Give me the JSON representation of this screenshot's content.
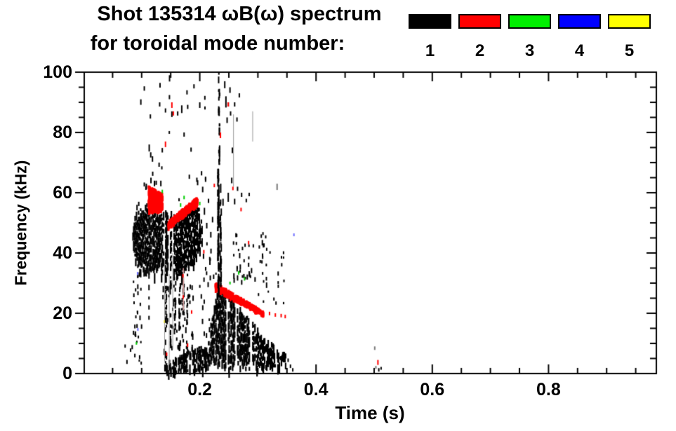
{
  "title": {
    "line1": "Shot 135314 ωB(ω) spectrum",
    "line2": "for toroidal mode number:"
  },
  "legend": {
    "modes": [
      {
        "label": "1",
        "color": "#000000"
      },
      {
        "label": "2",
        "color": "#ff0000"
      },
      {
        "label": "3",
        "color": "#00ee00"
      },
      {
        "label": "4",
        "color": "#0000ff"
      },
      {
        "label": "5",
        "color": "#ffff00"
      }
    ]
  },
  "chart_data": {
    "type": "scatter",
    "title": "Shot 135314 ωB(ω) spectrum for toroidal mode number: 1 2 3 4 5",
    "xlabel": "Time (s)",
    "ylabel": "Frequency (kHz)",
    "xlim": [
      0,
      0.985
    ],
    "ylim": [
      0,
      100
    ],
    "x_major_ticks": [
      0.2,
      0.4,
      0.6,
      0.8
    ],
    "x_minor_step": 0.05,
    "y_major_ticks": [
      0,
      20,
      40,
      60,
      80,
      100
    ],
    "y_minor_step": 5,
    "grid": false,
    "legend_position": "top-right-above-plot",
    "mode_colors": {
      "1": "#000000",
      "2": "#ff0000",
      "3": "#00cc00",
      "4": "#2222ff",
      "5": "#f0e000"
    },
    "clusters": [
      {
        "id": "main-blob",
        "type": "fill",
        "mode": 1,
        "step": 0.0012,
        "density": 0.93,
        "gap_prob": 0.04,
        "jitter": 2,
        "spike_prob": 0.06,
        "spike_max": 16,
        "gaps": [
          0.1395,
          0.1475,
          0.1535
        ],
        "top": [
          [
            0.085,
            47
          ],
          [
            0.088,
            52
          ],
          [
            0.095,
            53
          ],
          [
            0.105,
            54
          ],
          [
            0.112,
            56
          ],
          [
            0.12,
            54
          ],
          [
            0.128,
            52
          ],
          [
            0.135,
            53
          ],
          [
            0.142,
            55
          ],
          [
            0.15,
            53
          ],
          [
            0.158,
            52
          ],
          [
            0.165,
            53
          ],
          [
            0.172,
            52
          ],
          [
            0.178,
            51
          ],
          [
            0.185,
            54
          ],
          [
            0.192,
            56
          ],
          [
            0.198,
            53
          ],
          [
            0.204,
            48
          ]
        ],
        "bot": [
          [
            0.085,
            43
          ],
          [
            0.09,
            39
          ],
          [
            0.098,
            36
          ],
          [
            0.108,
            35
          ],
          [
            0.118,
            34
          ],
          [
            0.128,
            35
          ],
          [
            0.138,
            34
          ],
          [
            0.148,
            33
          ],
          [
            0.158,
            34
          ],
          [
            0.168,
            34
          ],
          [
            0.178,
            35
          ],
          [
            0.188,
            37
          ],
          [
            0.196,
            40
          ],
          [
            0.204,
            45
          ]
        ]
      },
      {
        "id": "low-blob",
        "type": "fill",
        "mode": 1,
        "step": 0.0012,
        "density": 0.88,
        "gap_prob": 0.09,
        "jitter": 1.5,
        "spike_prob": 0.05,
        "spike_max": 2,
        "gaps": [
          0.2465,
          0.262,
          0.289
        ],
        "top": [
          [
            0.218,
            14
          ],
          [
            0.224,
            21
          ],
          [
            0.23,
            26
          ],
          [
            0.238,
            27
          ],
          [
            0.248,
            25
          ],
          [
            0.258,
            23
          ],
          [
            0.268,
            21
          ],
          [
            0.278,
            19
          ],
          [
            0.29,
            16
          ],
          [
            0.3,
            14
          ],
          [
            0.312,
            11
          ],
          [
            0.324,
            9
          ],
          [
            0.336,
            7
          ],
          [
            0.348,
            6
          ]
        ],
        "bot": [
          [
            0.218,
            5
          ],
          [
            0.23,
            3
          ],
          [
            0.25,
            2.5
          ],
          [
            0.27,
            3
          ],
          [
            0.29,
            2.5
          ],
          [
            0.31,
            3
          ],
          [
            0.33,
            3.5
          ],
          [
            0.348,
            4
          ]
        ]
      },
      {
        "id": "bottom-arc",
        "type": "fill",
        "mode": 1,
        "step": 0.0013,
        "density": 0.8,
        "gap_prob": 0.15,
        "jitter": 0.8,
        "spike_prob": 0,
        "spike_max": 0,
        "top": [
          [
            0.14,
            3
          ],
          [
            0.15,
            4
          ],
          [
            0.16,
            5
          ],
          [
            0.175,
            6.5
          ],
          [
            0.19,
            8
          ],
          [
            0.2,
            8.5
          ],
          [
            0.212,
            8
          ],
          [
            0.218,
            6
          ]
        ],
        "bot": [
          [
            0.14,
            1
          ],
          [
            0.16,
            0.8
          ],
          [
            0.18,
            1
          ],
          [
            0.2,
            1.5
          ],
          [
            0.218,
            3
          ]
        ]
      },
      {
        "id": "red-burst",
        "type": "band",
        "mode": 2,
        "t": [
          0.112,
          0.136
        ],
        "f_top": [
          62,
          59.5
        ],
        "f_bot": [
          53.5,
          54.5
        ],
        "n": 300
      },
      {
        "id": "red-chirp-up",
        "type": "band",
        "mode": 2,
        "t": [
          0.146,
          0.196
        ],
        "f_top": [
          50.5,
          58.5
        ],
        "f_bot": [
          48.5,
          56
        ],
        "n": 280
      },
      {
        "id": "red-chirp-down",
        "type": "band",
        "mode": 2,
        "t": [
          0.227,
          0.31
        ],
        "f_top": [
          30,
          20.5
        ],
        "f_bot": [
          28,
          19.5
        ],
        "n": 320
      },
      {
        "id": "col-0232",
        "type": "vstreak",
        "mode": 1,
        "t": 0.232,
        "f": [
          28,
          68
        ],
        "n": 55,
        "len": [
          4,
          14
        ]
      },
      {
        "id": "col-0236",
        "type": "vstreak",
        "mode": 1,
        "t": 0.236,
        "f": [
          30,
          60
        ],
        "n": 30,
        "len": [
          4,
          12
        ]
      },
      {
        "id": "col-0234-high",
        "type": "vstreak",
        "mode": 1,
        "t": 0.2335,
        "f": [
          68,
          100
        ],
        "n": 25,
        "len": [
          3,
          10
        ]
      },
      {
        "id": "spike-0142",
        "type": "vstreak",
        "mode": 1,
        "t": 0.142,
        "f": [
          4,
          33
        ],
        "n": 22,
        "len": [
          3,
          9
        ]
      },
      {
        "id": "spike-0150",
        "type": "vstreak",
        "mode": 1,
        "t": 0.1495,
        "f": [
          8,
          33
        ],
        "n": 18,
        "len": [
          3,
          9
        ]
      },
      {
        "id": "spike-0158",
        "type": "vstreak",
        "mode": 1,
        "t": 0.1575,
        "f": [
          14,
          34
        ],
        "n": 16,
        "len": [
          3,
          8
        ]
      },
      {
        "id": "spike-0166",
        "type": "vstreak",
        "mode": 1,
        "t": 0.1655,
        "f": [
          5,
          33
        ],
        "n": 20,
        "len": [
          3,
          9
        ]
      },
      {
        "id": "spike-0172",
        "type": "vstreak",
        "mode": 1,
        "t": 0.172,
        "f": [
          16,
          34
        ],
        "n": 14,
        "len": [
          3,
          8
        ]
      },
      {
        "id": "spike-0178",
        "type": "vstreak",
        "mode": 1,
        "t": 0.178,
        "f": [
          8,
          34
        ],
        "n": 12,
        "len": [
          3,
          8
        ]
      },
      {
        "id": "under-sparse",
        "type": "cloud",
        "mode": 1,
        "t": [
          0.135,
          0.19
        ],
        "f": [
          8,
          32
        ],
        "n": 60,
        "len": [
          3,
          9
        ]
      },
      {
        "id": "left-sparse",
        "type": "cloud",
        "mode": 1,
        "t": [
          0.085,
          0.1
        ],
        "f": [
          12,
          35
        ],
        "n": 22,
        "len": [
          3,
          7
        ]
      },
      {
        "id": "left-low",
        "type": "cloud",
        "mode": 1,
        "t": [
          0.07,
          0.1
        ],
        "f": [
          3,
          12
        ],
        "n": 10,
        "len": [
          3,
          6
        ]
      },
      {
        "id": "gap-sparse",
        "type": "cloud",
        "mode": 1,
        "t": [
          0.2,
          0.23
        ],
        "f": [
          5,
          45
        ],
        "n": 35,
        "len": [
          3,
          8
        ]
      },
      {
        "id": "high-sparse",
        "type": "cloud",
        "mode": 1,
        "t": [
          0.095,
          0.215
        ],
        "f": [
          58,
          100
        ],
        "n": 18,
        "len": [
          3,
          8
        ]
      },
      {
        "id": "right-sparse",
        "type": "cloud",
        "mode": 1,
        "t": [
          0.258,
          0.315
        ],
        "f": [
          30,
          47
        ],
        "n": 45,
        "len": [
          3,
          8
        ]
      },
      {
        "id": "tail-sparse",
        "type": "cloud",
        "mode": 1,
        "t": [
          0.3,
          0.345
        ],
        "f": [
          22,
          42
        ],
        "n": 18,
        "len": [
          3,
          6
        ]
      }
    ],
    "sparse_points": {
      "black_dashes": [
        [
          0.092,
          56,
          8
        ],
        [
          0.095,
          57,
          6
        ],
        [
          0.108,
          63,
          8
        ],
        [
          0.113,
          76,
          10
        ],
        [
          0.115,
          86,
          6
        ],
        [
          0.116,
          65,
          8
        ],
        [
          0.119,
          67,
          6
        ],
        [
          0.122,
          64,
          8
        ],
        [
          0.125,
          64,
          6
        ],
        [
          0.13,
          70,
          6
        ],
        [
          0.131,
          90,
          6
        ],
        [
          0.133,
          64,
          8
        ],
        [
          0.141,
          88,
          6
        ],
        [
          0.148,
          99,
          9
        ],
        [
          0.152,
          87,
          8
        ],
        [
          0.162,
          87,
          6
        ],
        [
          0.169,
          89,
          11
        ],
        [
          0.173,
          80,
          6
        ],
        [
          0.178,
          94,
          6
        ],
        [
          0.185,
          75,
          6
        ],
        [
          0.19,
          96,
          6
        ],
        [
          0.2,
          90,
          8
        ],
        [
          0.182,
          66,
          6
        ],
        [
          0.195,
          65,
          6
        ],
        [
          0.196,
          55,
          5
        ],
        [
          0.199,
          55,
          5
        ],
        [
          0.205,
          62,
          8
        ],
        [
          0.208,
          55,
          10
        ],
        [
          0.212,
          50,
          8
        ],
        [
          0.215,
          58,
          6
        ],
        [
          0.219,
          47,
          8
        ],
        [
          0.222,
          52,
          8
        ],
        [
          0.21,
          65,
          6
        ],
        [
          0.236,
          63,
          13
        ],
        [
          0.24,
          58,
          10
        ],
        [
          0.243,
          97,
          10
        ],
        [
          0.245,
          92,
          16
        ],
        [
          0.247,
          85,
          8
        ],
        [
          0.249,
          90,
          6
        ],
        [
          0.252,
          95,
          8
        ],
        [
          0.253,
          87,
          6
        ],
        [
          0.256,
          75,
          8
        ],
        [
          0.26,
          90,
          6
        ],
        [
          0.264,
          85,
          6
        ],
        [
          0.268,
          93,
          6
        ],
        [
          0.249,
          60,
          13
        ],
        [
          0.255,
          65,
          8
        ],
        [
          0.26,
          58,
          8
        ],
        [
          0.265,
          62,
          6
        ],
        [
          0.272,
          60,
          6
        ],
        [
          0.28,
          58,
          5
        ],
        [
          0.285,
          60,
          5
        ],
        [
          0.352,
          5,
          5
        ],
        [
          0.356,
          3,
          5
        ],
        [
          0.36,
          1.8,
          5
        ],
        [
          0.508,
          1.8,
          5
        ],
        [
          0.512,
          2.2,
          4
        ]
      ],
      "red_dashes": [
        [
          0.152,
          90,
          8
        ],
        [
          0.1545,
          87,
          6
        ],
        [
          0.141,
          77,
          8
        ],
        [
          0.2355,
          80,
          8
        ],
        [
          0.249,
          90,
          6
        ],
        [
          0.225,
          63,
          5
        ],
        [
          0.257,
          62,
          5
        ],
        [
          0.271,
          55,
          5
        ],
        [
          0.284,
          44,
          5
        ],
        [
          0.207,
          41,
          5
        ],
        [
          0.171,
          33,
          5
        ],
        [
          0.1715,
          26,
          5
        ],
        [
          0.143,
          7,
          5
        ],
        [
          0.179,
          10,
          5
        ],
        [
          0.186,
          21,
          5
        ],
        [
          0.32,
          20.5,
          5
        ],
        [
          0.33,
          20,
          5
        ],
        [
          0.34,
          19.8,
          5
        ],
        [
          0.347,
          19.5,
          5
        ],
        [
          0.5065,
          4.5,
          7
        ]
      ],
      "green_dashes": [
        [
          0.1355,
          61,
          5
        ],
        [
          0.167,
          56.5,
          5
        ],
        [
          0.173,
          59,
          5
        ],
        [
          0.2,
          57,
          5
        ],
        [
          0.267,
          34,
          5
        ],
        [
          0.277,
          32,
          5
        ],
        [
          0.091,
          10.5,
          4
        ],
        [
          0.252,
          30.5,
          4
        ]
      ],
      "blue_dashes": [
        [
          0.093,
          33.7,
          4
        ],
        [
          0.0935,
          15.1,
          4
        ],
        [
          0.362,
          46.5,
          4
        ]
      ],
      "yellow_dashes": [
        [
          0.139,
          17.7,
          4
        ]
      ],
      "gray_dashes": [
        [
          0.501,
          9,
          5
        ],
        [
          0.503,
          2.5,
          4
        ],
        [
          0.333,
          63,
          9
        ]
      ],
      "gray_vlines": [
        [
          0.1395,
          4,
          38
        ],
        [
          0.1475,
          3,
          33
        ],
        [
          0.1535,
          8,
          40
        ],
        [
          0.258,
          62,
          86
        ],
        [
          0.291,
          77,
          87
        ]
      ],
      "pink_vlines": [
        [
          0.1715,
          21,
          35
        ]
      ]
    }
  }
}
